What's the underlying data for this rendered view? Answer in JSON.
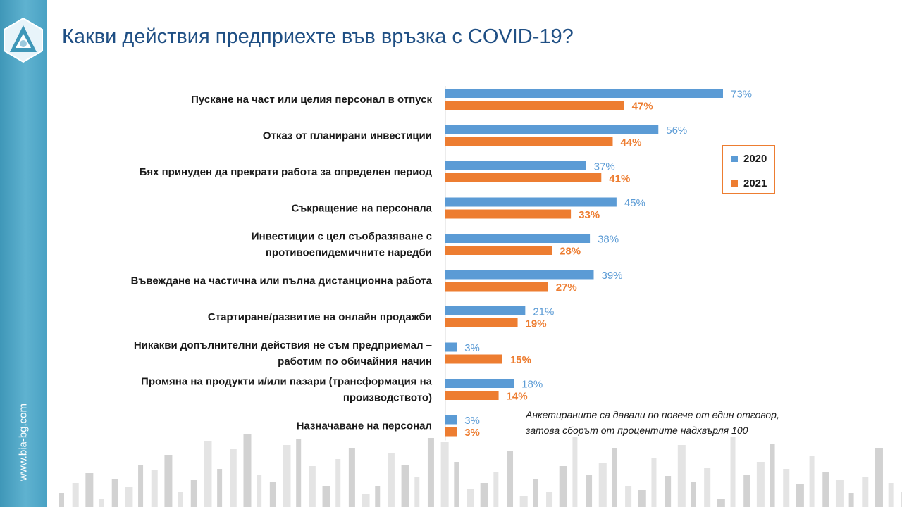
{
  "sidebar": {
    "site": "www.bia-bg.com"
  },
  "title": "Какви действия предприехте във връзка с COVID-19?",
  "note": {
    "line1": "Анкетираните са давали по повече от един отговор,",
    "line2": "затова сборът от процентите надхвърля 100"
  },
  "legend": [
    {
      "name": "2020",
      "color": "#5b9bd5"
    },
    {
      "name": "2021",
      "color": "#ed7d31"
    }
  ],
  "chart_data": {
    "type": "bar",
    "orientation": "horizontal",
    "categories": [
      [
        "Пускане на част или целия персонал в отпуск"
      ],
      [
        "Отказ от планирани инвестиции"
      ],
      [
        "Бях принуден да прекратя работа за определен период"
      ],
      [
        "Съкращение на персонала"
      ],
      [
        "Инвестиции с цел съобразяване с",
        "противоепидемичните наредби"
      ],
      [
        "Въвеждане на частична или пълна дистанционна работа"
      ],
      [
        "Стартиране/развитие на онлайн продажби"
      ],
      [
        "Никакви допълнителни действия не съм предприемал –",
        "работим по обичайния начин"
      ],
      [
        "Промяна на продукти и/или пазари (трансформация на",
        "производството)"
      ],
      [
        "Назначаване на персонал"
      ]
    ],
    "series": [
      {
        "name": "2020",
        "color": "#5b9bd5",
        "values": [
          73,
          56,
          37,
          45,
          38,
          39,
          21,
          3,
          18,
          3
        ]
      },
      {
        "name": "2021",
        "color": "#ed7d31",
        "values": [
          47,
          44,
          41,
          33,
          28,
          27,
          19,
          15,
          14,
          3
        ]
      }
    ],
    "value_suffix": "%",
    "xlim": [
      0,
      100
    ],
    "legend_position": "right",
    "grid": false
  }
}
